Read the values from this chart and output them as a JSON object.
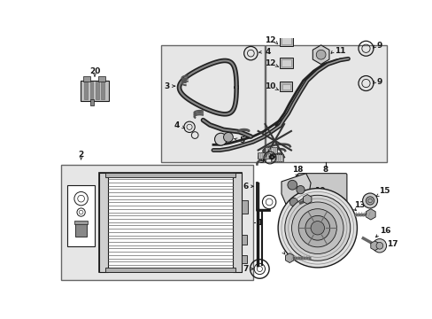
{
  "bg": "#ffffff",
  "fg": "#1a1a1a",
  "fig_w": 4.89,
  "fig_h": 3.6,
  "dpi": 100,
  "box_face": "#e6e6e6",
  "box_edge": "#666666",
  "fs": 6.5,
  "fs_small": 5.5
}
